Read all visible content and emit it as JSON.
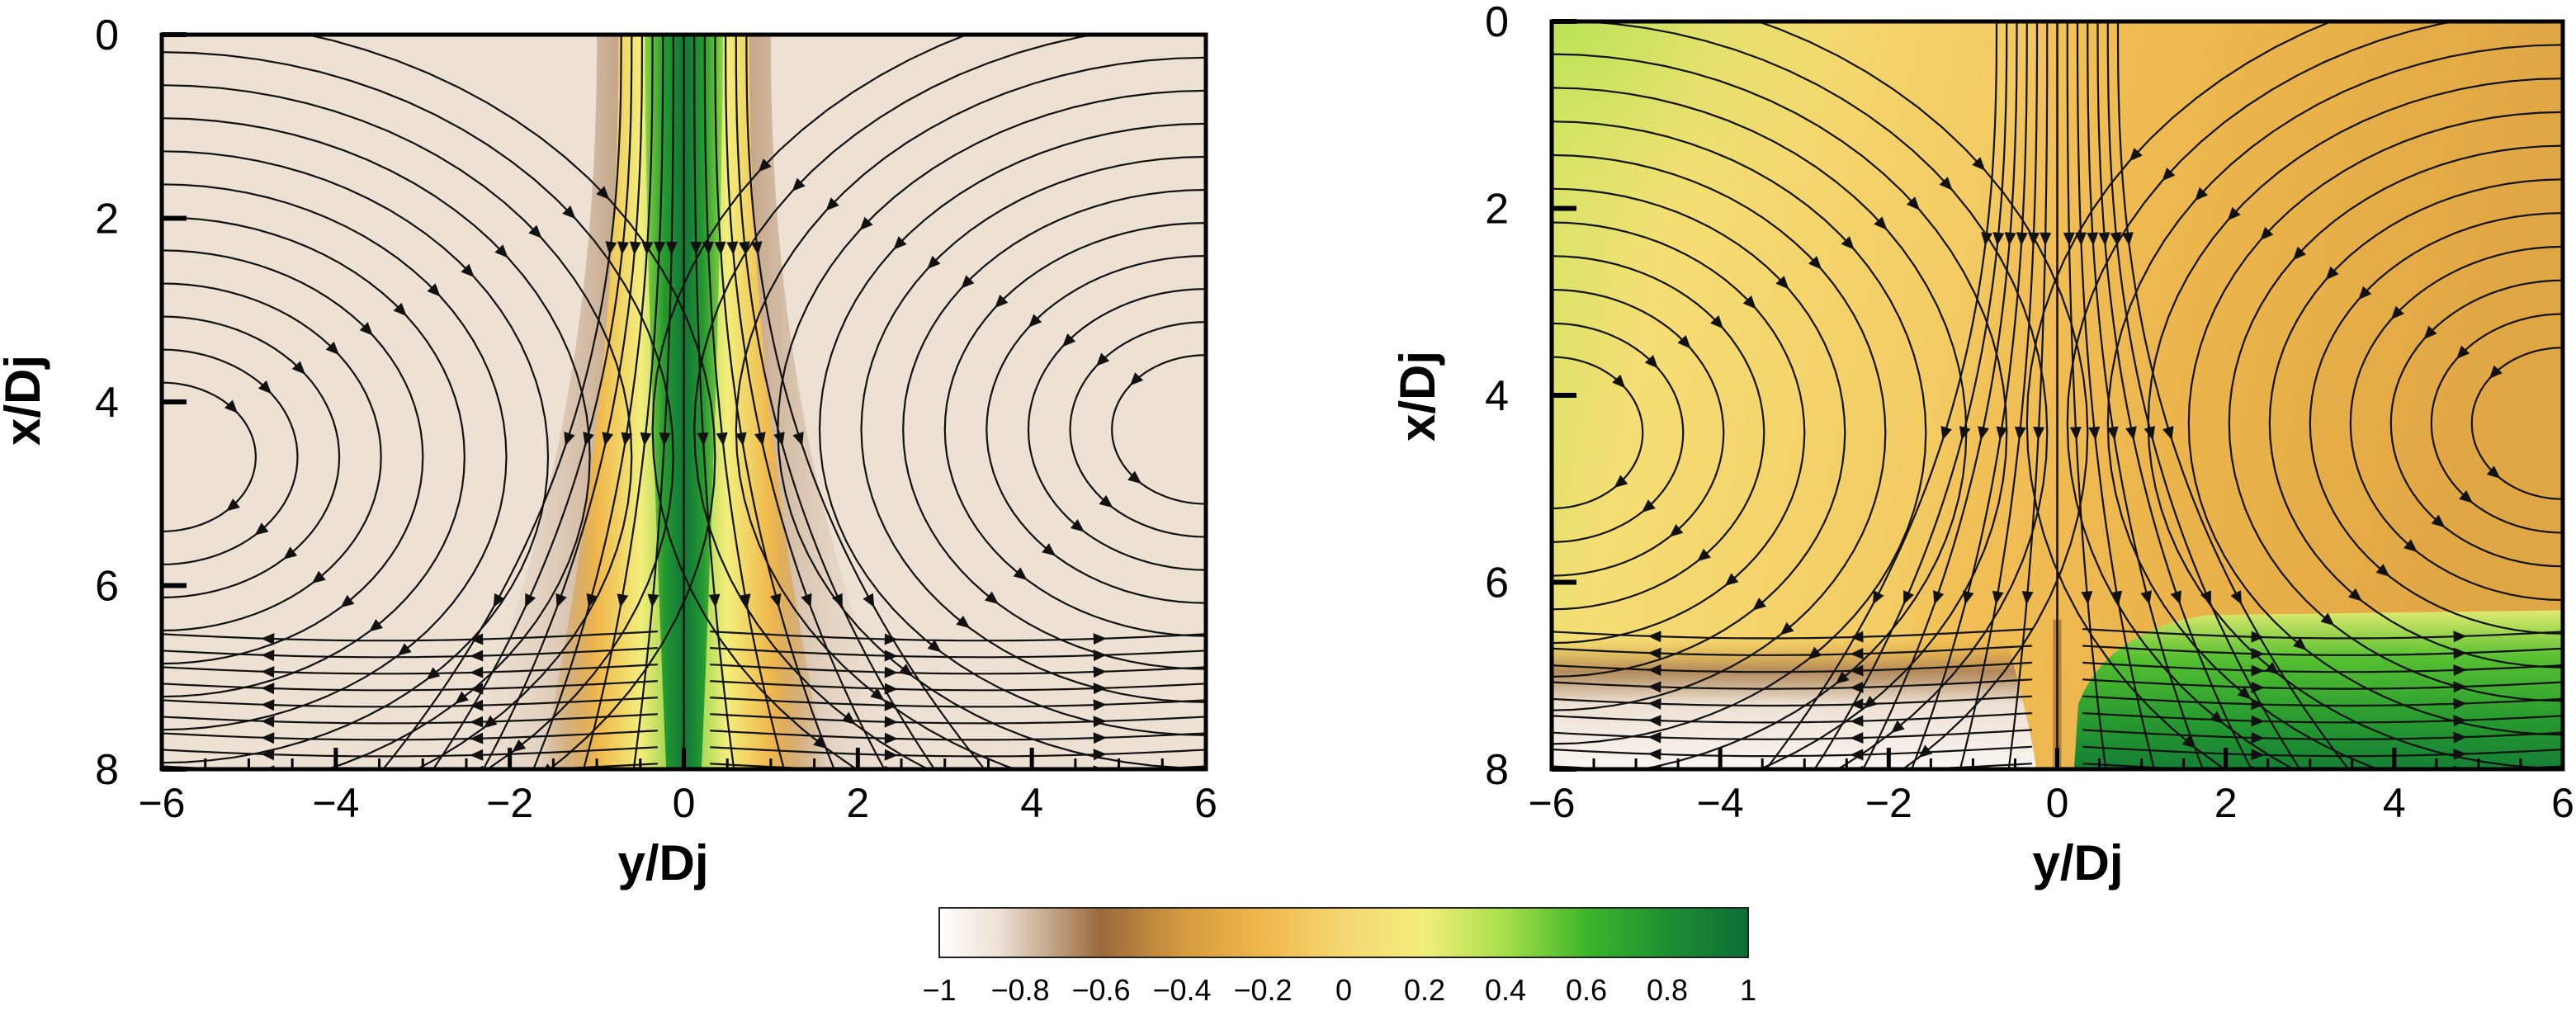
{
  "chart_data": [
    {
      "type": "heatmap",
      "title": "",
      "xlabel": "y/Dj",
      "ylabel": "x/Dj",
      "xlim": [
        -6,
        6
      ],
      "ylim": [
        0,
        8
      ],
      "y_axis_inverted": true,
      "xticks": [
        "−6",
        "−4",
        "−2",
        "0",
        "2",
        "4",
        "6"
      ],
      "yticks": [
        "0",
        "2",
        "4",
        "6",
        "8"
      ],
      "overlay": "streamlines with arrowheads",
      "field": {
        "background_value": -0.85,
        "central_jet": {
          "y_center": 0,
          "half_width": 0.45,
          "peak_value": 0.9
        },
        "jet_edge_value": -0.4
      },
      "vortices": [
        {
          "side": "left",
          "center": [
            -6,
            4.6
          ]
        },
        {
          "side": "right",
          "center": [
            6,
            4.3
          ]
        }
      ]
    },
    {
      "type": "heatmap",
      "title": "",
      "xlabel": "y/Dj",
      "ylabel": "x/Dj",
      "xlim": [
        -6,
        6
      ],
      "ylim": [
        0,
        8
      ],
      "y_axis_inverted": true,
      "xticks": [
        "−6",
        "−4",
        "−2",
        "0",
        "2",
        "4",
        "6"
      ],
      "yticks": [
        "0",
        "2",
        "4",
        "6",
        "8"
      ],
      "overlay": "streamlines with arrowheads",
      "field": {
        "upper_left_value": 0.15,
        "upper_right_value": -0.3,
        "lower_left_value": -0.9,
        "lower_right_value": 0.85,
        "lower_region_starts_at_x": 6.6
      },
      "vortices": [
        {
          "side": "left",
          "center": [
            -6,
            4.4
          ]
        },
        {
          "side": "right",
          "center": [
            6,
            4.3
          ]
        }
      ]
    }
  ],
  "colorbar": {
    "range": [
      -1,
      1
    ],
    "tick_labels": [
      "−1",
      "−0.8",
      "−0.6",
      "−0.4",
      "−0.2",
      "0",
      "0.2",
      "0.4",
      "0.6",
      "0.8",
      "1"
    ],
    "stops": [
      {
        "value": -1.0,
        "color": "#ffffff"
      },
      {
        "value": -0.85,
        "color": "#ede1d4"
      },
      {
        "value": -0.6,
        "color": "#9a6a3c"
      },
      {
        "value": -0.4,
        "color": "#d49a3e"
      },
      {
        "value": -0.2,
        "color": "#f0b84c"
      },
      {
        "value": 0.0,
        "color": "#f5d872"
      },
      {
        "value": 0.2,
        "color": "#f3ee7c"
      },
      {
        "value": 0.4,
        "color": "#a6df48"
      },
      {
        "value": 0.6,
        "color": "#3cb62a"
      },
      {
        "value": 0.8,
        "color": "#1e8f32"
      },
      {
        "value": 1.0,
        "color": "#0c6e38"
      }
    ]
  }
}
